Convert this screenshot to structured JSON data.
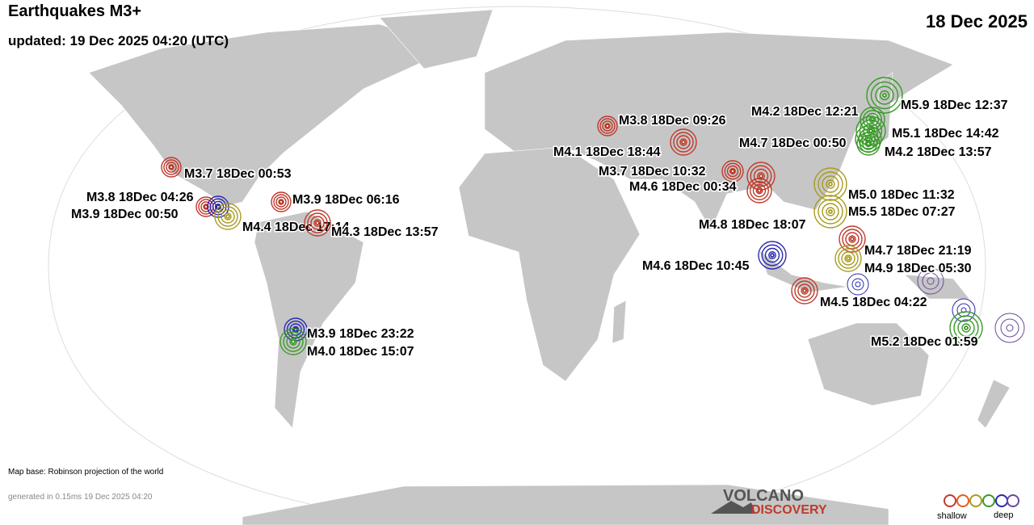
{
  "header": {
    "title": "Earthquakes M3+",
    "updated": "updated: 19 Dec 2025 04:20 (UTC)",
    "date": "18 Dec 2025"
  },
  "quakes": [
    {
      "label": "M3.8 18Dec 09:26",
      "color": "#c0392b"
    },
    {
      "label": "M4.1 18Dec 18:44",
      "color": "#c0392b"
    },
    {
      "label": "M3.7 18Dec 10:32",
      "color": "#c0392b"
    },
    {
      "label": "M4.6 18Dec 00:34",
      "color": "#c0392b"
    },
    {
      "label": "M4.8 18Dec 18:07",
      "color": "#c0392b"
    },
    {
      "label": "M4.2 18Dec 12:21",
      "color": "#3a9a2a"
    },
    {
      "label": "M5.9 18Dec 12:37",
      "color": "#3a9a2a"
    },
    {
      "label": "M5.1 18Dec 14:42",
      "color": "#3a9a2a"
    },
    {
      "label": "M4.7 18Dec 00:50",
      "color": "#3a9a2a"
    },
    {
      "label": "M4.2 18Dec 13:57",
      "color": "#3a9a2a"
    },
    {
      "label": "M5.0 18Dec 11:32",
      "color": "#a89a20"
    },
    {
      "label": "M5.5 18Dec 07:27",
      "color": "#a89a20"
    },
    {
      "label": "M4.7 18Dec 21:19",
      "color": "#c0392b"
    },
    {
      "label": "M4.9 18Dec 05:30",
      "color": "#a89a20"
    },
    {
      "label": "M4.6 18Dec 10:45",
      "color": "#2a2ab0"
    },
    {
      "label": "M4.5 18Dec 04:22",
      "color": "#c0392b"
    },
    {
      "label": "M5.2 18Dec 01:59",
      "color": "#3a9a2a"
    },
    {
      "label": "M3.7 18Dec 00:53",
      "color": "#c0392b"
    },
    {
      "label": "M3.8 18Dec 04:26",
      "color": "#c0392b"
    },
    {
      "label": "M3.9 18Dec 00:50",
      "color": "#2a2ab0"
    },
    {
      "label": "M4.4 18Dec 17:14",
      "color": "#a89a20"
    },
    {
      "label": "M4.3 18Dec 13:57",
      "color": "#c0392b"
    },
    {
      "label": "M3.9 18Dec 06:16",
      "color": "#c0392b"
    },
    {
      "label": "M3.9 18Dec 23:22",
      "color": "#2a2ab0"
    },
    {
      "label": "M4.0 18Dec 15:07",
      "color": "#3a9a2a"
    }
  ],
  "footer": {
    "map_base": "Map base: Robinson projection of the world",
    "generated": "generated in 0.15ms 19 Dec 2025 04:20",
    "logo_top": "VOLCANO",
    "logo_bottom": "DISCOVERY",
    "legend_shallow": "shallow",
    "legend_deep": "deep"
  }
}
